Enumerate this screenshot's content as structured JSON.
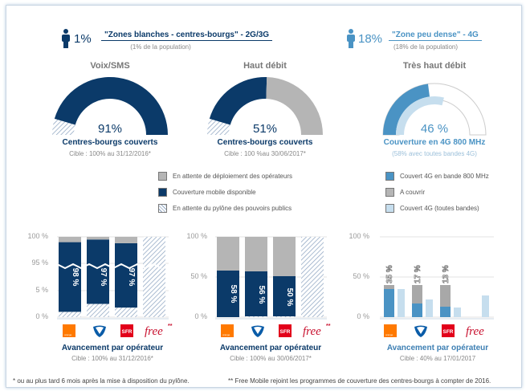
{
  "header": {
    "left": {
      "percent": "1%",
      "title": "\"Zones blanches - centres-bourgs\" - 2G/3G",
      "subtitle": "(1% de la population)",
      "icon": "person-icon"
    },
    "right": {
      "percent": "18%",
      "title": "\"Zone peu dense\" - 4G",
      "subtitle": "(18% de la population)",
      "icon": "person-icon"
    }
  },
  "colors": {
    "dark": "#0b3a69",
    "grey": "#b5b5b5",
    "blue800": "#4a93c4",
    "lightblue": "#c6deee",
    "hatch": "#9fb3cc",
    "orange": "#ff7900",
    "sfr": "#e2001a",
    "free": "#c8102e",
    "bouygues": "#0a5ca8"
  },
  "gauges": [
    {
      "title": "Voix/SMS",
      "value": "91%",
      "caption": "Centres-bourgs couverts",
      "target": "Cible : 100% au 31/12/2016*"
    },
    {
      "title": "Haut débit",
      "value": "51%",
      "caption": "Centres-bourgs couverts",
      "target": "Cible : 100 %au 30/06/2017*"
    },
    {
      "title": "Très haut débit",
      "value": "46 %",
      "caption": "Couverture en 4G 800 MHz",
      "target": "(58% avec toutes bandes 4G)"
    }
  ],
  "legend_left": [
    "En attente de déploiement des opérateurs",
    "Couverture mobile disponible",
    "En attente du pylône des pouvoirs publics"
  ],
  "legend_right": [
    "Couvert 4G en bande 800 MHz",
    "A couvrir",
    "Couvert 4G (toutes bandes)"
  ],
  "chart_data": [
    {
      "type": "bar",
      "title": "Voix/SMS",
      "stacked": true,
      "broken_axis": true,
      "yticks": [
        "100 %",
        "95 %",
        "5 %",
        "0 %"
      ],
      "categories": [
        "Orange",
        "Bouygues Telecom",
        "SFR",
        "Free"
      ],
      "series": [
        {
          "name": "En attente du pylône des pouvoirs publics",
          "values": [
            1,
            2.5,
            1.8,
            100
          ]
        },
        {
          "name": "Couverture mobile disponible",
          "values": [
            98,
            97,
            97,
            0
          ]
        },
        {
          "name": "En attente de déploiement des opérateurs",
          "values": [
            1,
            0.5,
            1.2,
            0
          ]
        }
      ],
      "labels": [
        "98 %",
        "97 %",
        "97 %",
        ""
      ],
      "caption": "Avancement par opérateur",
      "target": "Cible : 100% au 31/12/2016*"
    },
    {
      "type": "bar",
      "title": "Haut débit",
      "stacked": true,
      "yticks": [
        "100 %",
        "50 %",
        "0 %"
      ],
      "ylim": [
        0,
        100
      ],
      "categories": [
        "Orange",
        "Bouygues Telecom",
        "SFR",
        "Free"
      ],
      "series": [
        {
          "name": "En attente du pylône des pouvoirs publics",
          "values": [
            0,
            1,
            1,
            100
          ]
        },
        {
          "name": "Couverture mobile disponible",
          "values": [
            58,
            56,
            50,
            0
          ]
        },
        {
          "name": "En attente de déploiement des opérateurs",
          "values": [
            42,
            43,
            49,
            0
          ]
        }
      ],
      "labels": [
        "58 %",
        "56 %",
        "50 %",
        ""
      ],
      "caption": "Avancement par opérateur",
      "target": "Cible : 100% au 30/06/2017*"
    },
    {
      "type": "bar",
      "title": "Très haut débit",
      "yticks": [
        "100 %",
        "50 %",
        "0 %"
      ],
      "ylim": [
        0,
        100
      ],
      "categories": [
        "Orange",
        "Bouygues Telecom",
        "SFR",
        "Free"
      ],
      "series": [
        {
          "name": "Couvert 4G en bande 800 MHz",
          "values": [
            35,
            17,
            13,
            0
          ]
        },
        {
          "name": "A couvrir",
          "values": [
            5,
            23,
            27,
            0
          ]
        },
        {
          "name": "Couvert 4G (toutes bandes)",
          "values": [
            35,
            22,
            12,
            27
          ]
        }
      ],
      "labels": [
        "35 %",
        "17 %",
        "13 %",
        ""
      ],
      "caption": "Avancement par opérateur",
      "target": "Cible : 40% au 17/01/2017"
    }
  ],
  "operators": {
    "orange": "orange",
    "sfr": "SFR",
    "free": "free",
    "free_mark": "**"
  },
  "footer": {
    "note1": "* ou au plus tard 6 mois après la mise à disposition du pylône.",
    "note2": "** Free Mobile rejoint les programmes de couverture des centres-bourgs à compter de 2016."
  }
}
